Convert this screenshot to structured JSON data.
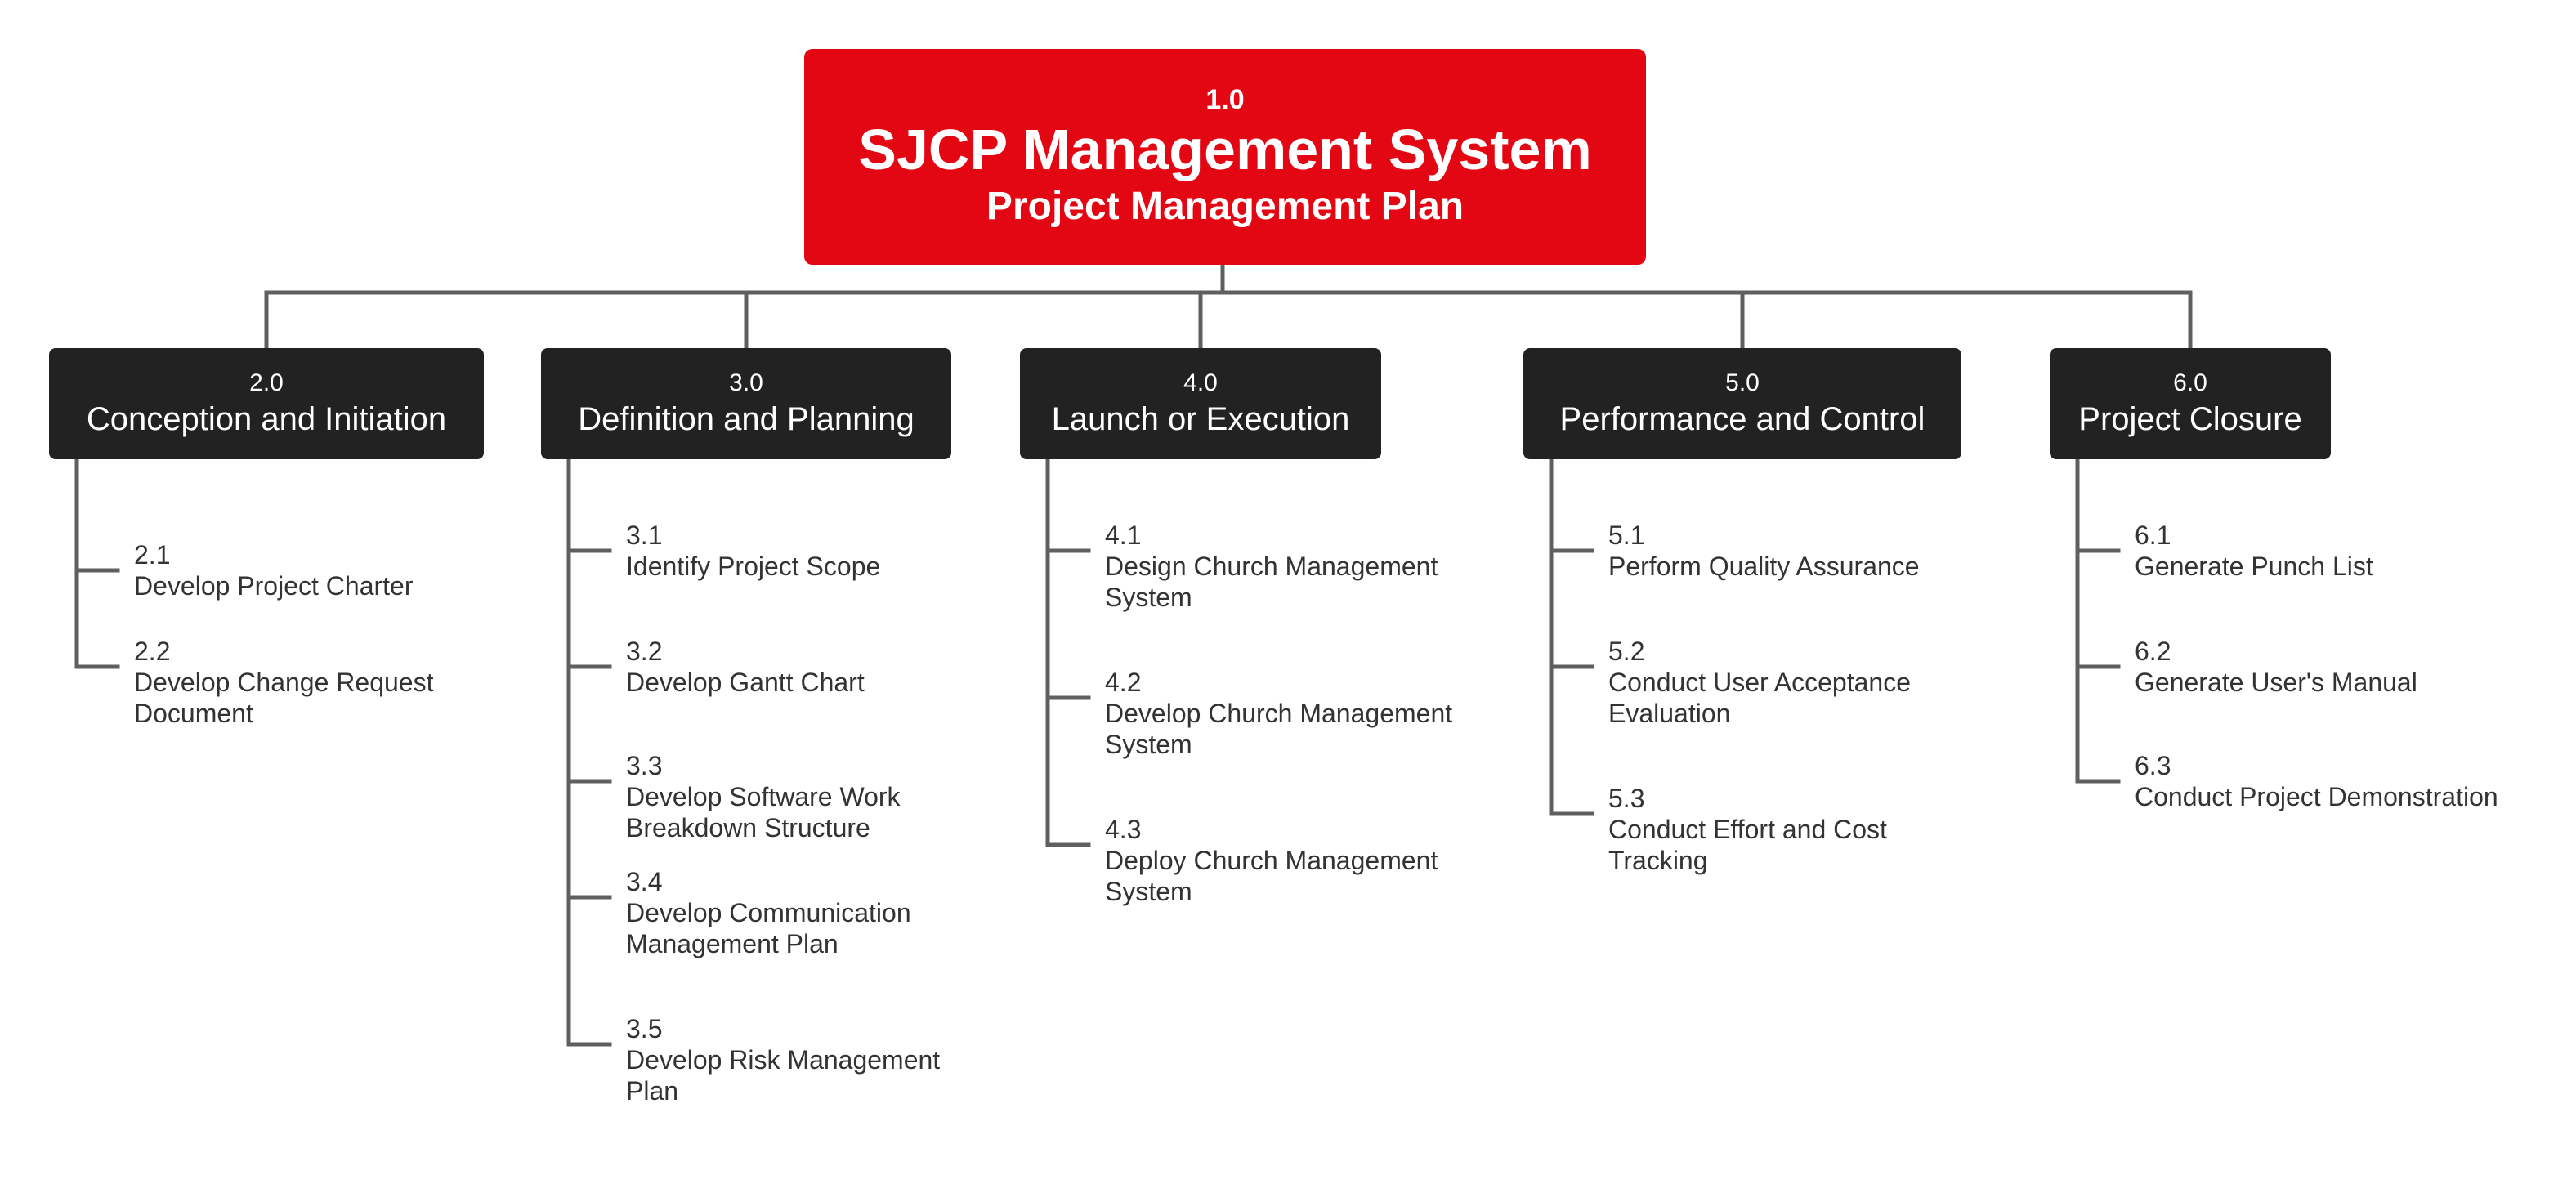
{
  "root": {
    "code": "1.0",
    "title": "SJCP Management System",
    "subtitle": "Project Management Plan"
  },
  "phases": [
    {
      "code": "2.0",
      "title": "Conception and Initiation",
      "tasks": [
        {
          "code": "2.1",
          "label": "Develop Project Charter"
        },
        {
          "code": "2.2",
          "label": "Develop Change Request\nDocument"
        }
      ]
    },
    {
      "code": "3.0",
      "title": "Definition and Planning",
      "tasks": [
        {
          "code": "3.1",
          "label": "Identify Project Scope"
        },
        {
          "code": "3.2",
          "label": "Develop Gantt Chart"
        },
        {
          "code": "3.3",
          "label": "Develop Software Work\nBreakdown Structure"
        },
        {
          "code": "3.4",
          "label": "Develop Communication\nManagement Plan"
        },
        {
          "code": "3.5",
          "label": "Develop Risk Management\nPlan"
        }
      ]
    },
    {
      "code": "4.0",
      "title": "Launch or Execution",
      "tasks": [
        {
          "code": "4.1",
          "label": "Design Church Management\nSystem"
        },
        {
          "code": "4.2",
          "label": "Develop Church Management\nSystem"
        },
        {
          "code": "4.3",
          "label": "Deploy Church Management\nSystem"
        }
      ]
    },
    {
      "code": "5.0",
      "title": "Performance and Control",
      "tasks": [
        {
          "code": "5.1",
          "label": "Perform Quality Assurance"
        },
        {
          "code": "5.2",
          "label": "Conduct User Acceptance\nEvaluation"
        },
        {
          "code": "5.3",
          "label": "Conduct Effort and Cost\nTracking"
        }
      ]
    },
    {
      "code": "6.0",
      "title": "Project Closure",
      "tasks": [
        {
          "code": "6.1",
          "label": "Generate Punch List"
        },
        {
          "code": "6.2",
          "label": "Generate User's Manual"
        },
        {
          "code": "6.3",
          "label": "Conduct Project Demonstration"
        }
      ]
    }
  ],
  "colors": {
    "root_fill": "#e30613",
    "phase_fill": "#222222",
    "connector": "#5f5f5f",
    "task_text": "#333333"
  }
}
